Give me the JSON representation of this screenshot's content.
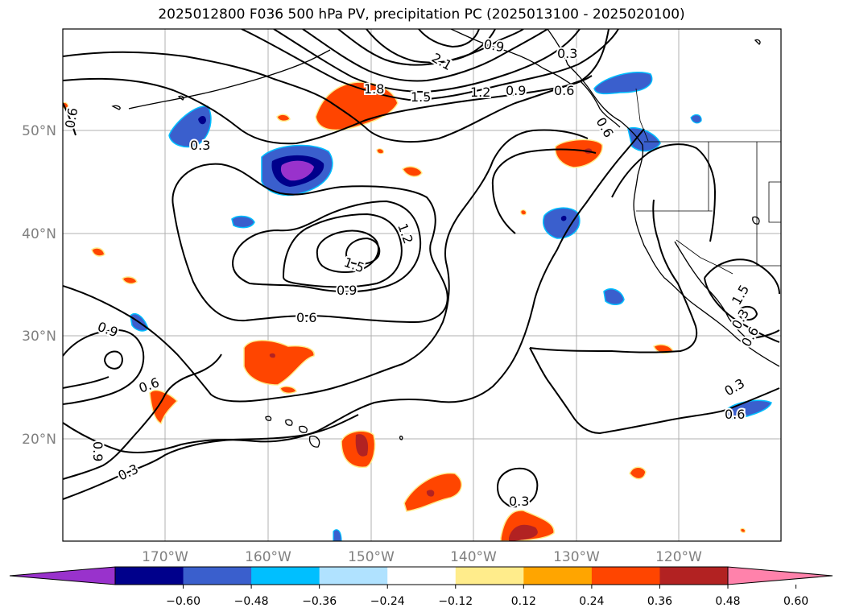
{
  "title": "2025012800 F036 500 hPa PV, precipitation PC (2025013100 - 2025020100)",
  "lon_labels": [
    "170°W",
    "160°W",
    "150°W",
    "140°W",
    "130°W",
    "120°W"
  ],
  "lat_labels": [
    "50°N",
    "40°N",
    "30°N",
    "20°N"
  ],
  "colorbar": {
    "colors": [
      "#9932cc",
      "#00008b",
      "#3a5fcd",
      "#00bfff",
      "#b0e2ff",
      "#ffffff",
      "#ffec8b",
      "#ffa500",
      "#ff4500",
      "#b22222",
      "#ff82ab"
    ],
    "ticks": [
      "−0.60",
      "−0.48",
      "−0.36",
      "−0.24",
      "−0.12",
      "0.12",
      "0.24",
      "0.36",
      "0.48",
      "0.60"
    ]
  },
  "contour_labels": [
    "0.3",
    "0.6",
    "0.9",
    "1.2",
    "1.5",
    "1.8",
    "2.1",
    "1.5",
    "1.2",
    "0.9",
    "0.6",
    "0.3",
    "0.9",
    "0.6",
    "0.3",
    "0.3",
    "0.6",
    "0.9",
    "0.6",
    "0.3",
    "0.6",
    "0.3",
    "0.9",
    "1.5",
    "0.6"
  ]
}
